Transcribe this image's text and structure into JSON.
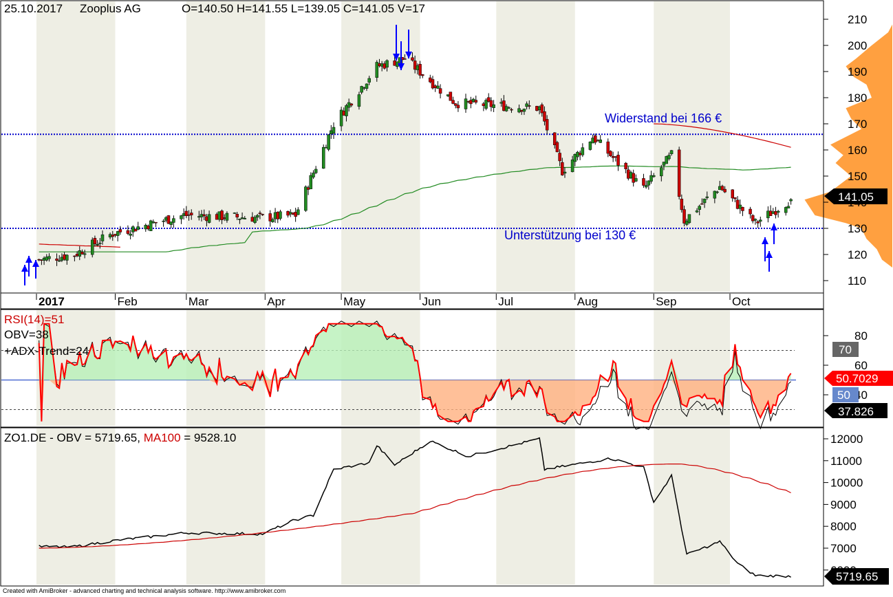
{
  "header": {
    "date": "25.10.2017",
    "name": "Zooplus AG",
    "ohlcv": "O=140.50  H=141.55  L=139.05  C=141.05  V=17"
  },
  "price_panel": {
    "resistance_label": "Widerstand bei 166 €",
    "support_label": "Unterstützung bei 130 €",
    "last_price_label": "141.05",
    "y_ticks": [
      "210",
      "200",
      "190",
      "180",
      "170",
      "160",
      "150",
      "140",
      "130",
      "120",
      "110"
    ],
    "x_labels": [
      "2017",
      "Feb",
      "Mar",
      "Apr",
      "May",
      "Jun",
      "Jul",
      "Aug",
      "Sep",
      "Oct"
    ]
  },
  "rsi_panel": {
    "legend_rsi": "RSI(14)=51",
    "legend_obv": "OBV=38",
    "legend_adx": "+ADX-Trend=24",
    "y_ticks": [
      "80",
      "60",
      "40"
    ],
    "box_70": "70",
    "box_50": "50",
    "box_rsi": "50.7029",
    "box_other": "37.826"
  },
  "obv_panel": {
    "legend_prefix": "ZO1.DE - OBV = 5719.65, ",
    "legend_ma": "MA100",
    "legend_suffix": " = 9528.10",
    "y_ticks": [
      "12000",
      "11000",
      "10000",
      "9000",
      "8000",
      "7000",
      "6000"
    ],
    "last_label": "5719.65"
  },
  "footer": "Created with AmiBroker - advanced charting and technical analysis software. http://www.amibroker.com",
  "colors": {
    "up_candle": "#228B22",
    "down_candle": "#cc0000",
    "rsi_line": "#ff0000",
    "level_line": "#0000cc",
    "ma_green": "#228B22",
    "ma_red": "#cc0000",
    "volume_profile": "#ffa040",
    "month_shade": "#eeeee4"
  },
  "chart_data": [
    {
      "type": "candlestick",
      "title": "25.10.2017 Zooplus AG",
      "ylim": [
        103,
        213
      ],
      "months": [
        "Jan",
        "Feb",
        "Mar",
        "Apr",
        "May",
        "Jun",
        "Jul",
        "Aug",
        "Sep",
        "Oct"
      ],
      "close_key_points": [
        {
          "date": "2017-01-02",
          "close": 118
        },
        {
          "date": "2017-01-16",
          "close": 120
        },
        {
          "date": "2017-01-31",
          "close": 128
        },
        {
          "date": "2017-02-28",
          "close": 135
        },
        {
          "date": "2017-03-31",
          "close": 134
        },
        {
          "date": "2017-04-13",
          "close": 135
        },
        {
          "date": "2017-04-28",
          "close": 170
        },
        {
          "date": "2017-05-15",
          "close": 192
        },
        {
          "date": "2017-05-26",
          "close": 195
        },
        {
          "date": "2017-06-15",
          "close": 178
        },
        {
          "date": "2017-07-18",
          "close": 176
        },
        {
          "date": "2017-07-27",
          "close": 152
        },
        {
          "date": "2017-08-08",
          "close": 165
        },
        {
          "date": "2017-08-28",
          "close": 145
        },
        {
          "date": "2017-09-08",
          "close": 158
        },
        {
          "date": "2017-09-13",
          "close": 133
        },
        {
          "date": "2017-09-27",
          "close": 146
        },
        {
          "date": "2017-10-11",
          "close": 132
        },
        {
          "date": "2017-10-25",
          "close": 141.05
        }
      ],
      "last": {
        "open": 140.5,
        "high": 141.55,
        "low": 139.05,
        "close": 141.05,
        "volume": 17
      },
      "horizontal_levels": [
        {
          "label": "Widerstand bei 166 €",
          "value": 166
        },
        {
          "label": "Unterstützung bei 130 €",
          "value": 130
        }
      ],
      "signals": [
        "buy arrows early Jan",
        "sell arrows mid May",
        "buy arrows mid Oct"
      ]
    },
    {
      "type": "line",
      "series": [
        {
          "name": "RSI(14)",
          "last": 50.7029
        },
        {
          "name": "OBV",
          "last": 37.826
        }
      ],
      "levels": [
        70,
        50,
        30
      ],
      "y_ticks": [
        80,
        60,
        40
      ]
    },
    {
      "type": "line",
      "series": [
        {
          "name": "OBV",
          "last": 5719.65
        },
        {
          "name": "MA100",
          "last": 9528.1
        }
      ],
      "ylim": [
        5700,
        12500
      ]
    }
  ]
}
